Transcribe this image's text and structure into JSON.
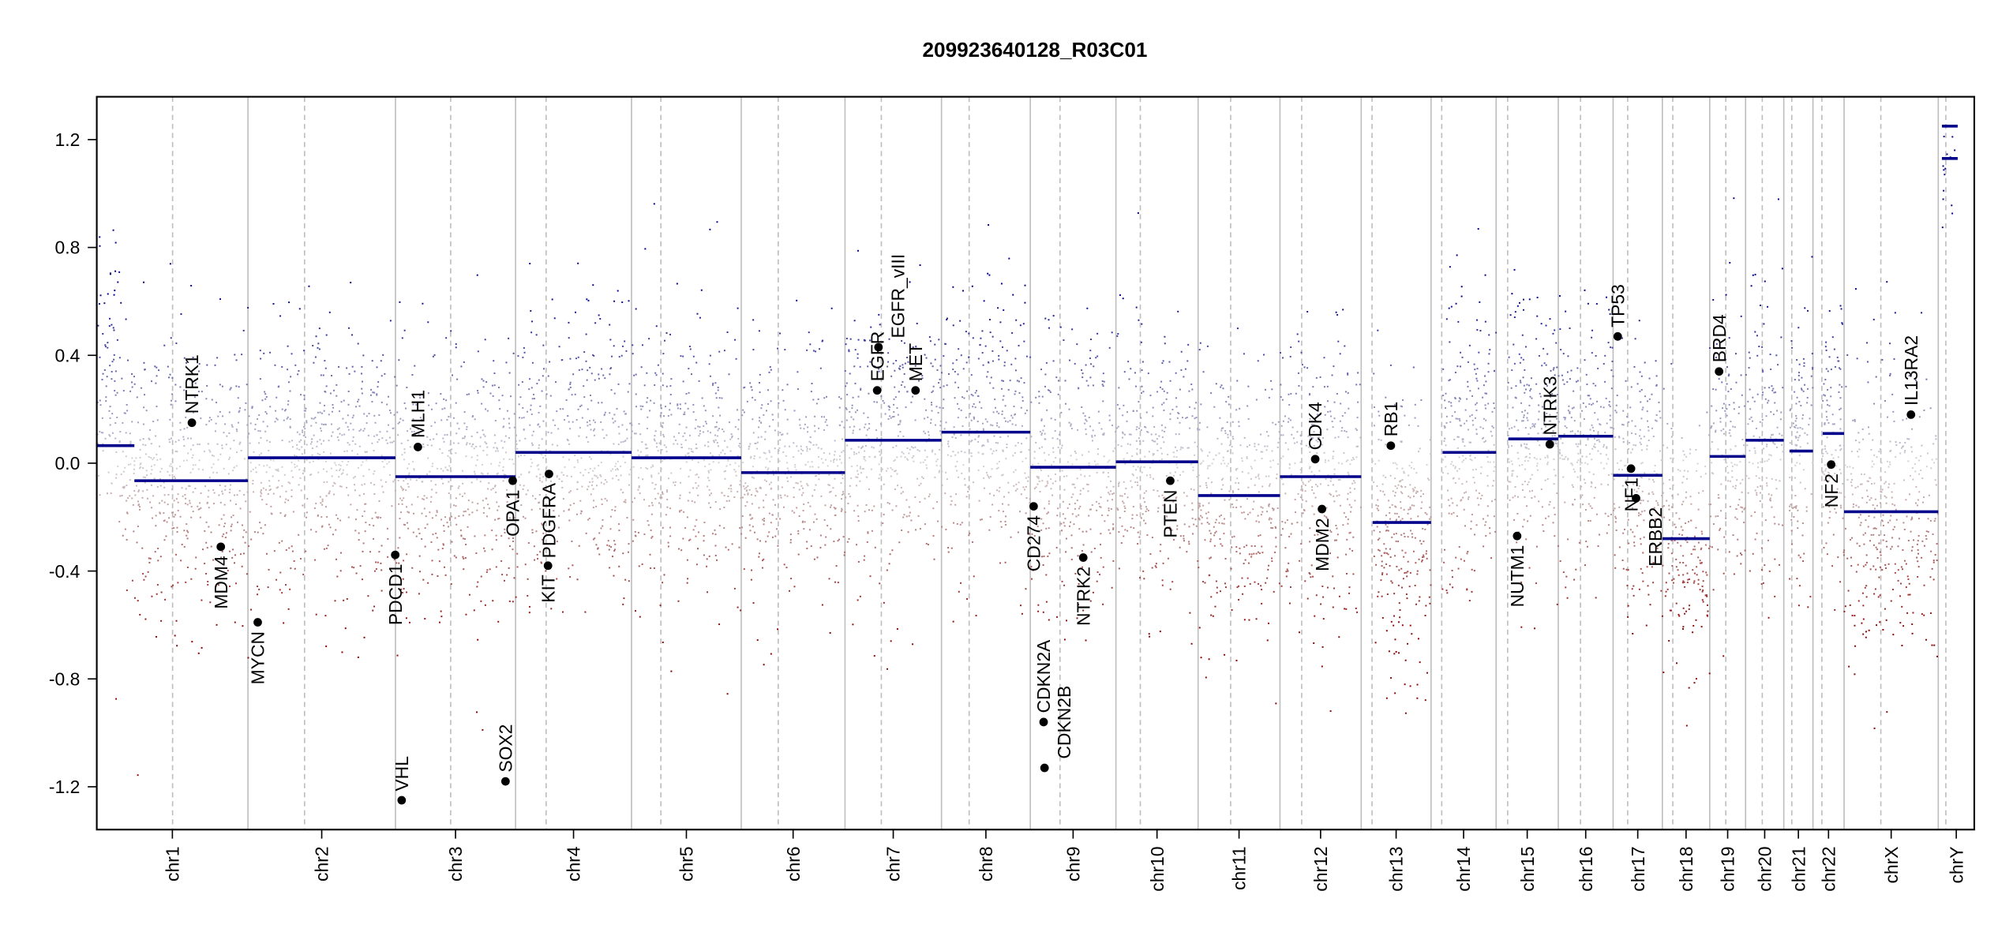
{
  "chart_data": {
    "type": "scatter",
    "title": "209923640128_R03C01",
    "xlabel": "",
    "ylabel": "",
    "ylim": [
      -1.25,
      1.25
    ],
    "yticks": [
      -1.2,
      -0.8,
      -0.4,
      0.0,
      0.4,
      0.8,
      1.2
    ],
    "ytick_labels": [
      "-1.2",
      "-0.8",
      "-0.4",
      "0.0",
      "0.4",
      "0.8",
      "1.2"
    ],
    "grid": false,
    "colors": {
      "low": "#8b0000",
      "mid": "#d3d3d3",
      "high": "#00008b",
      "segment": "#00008b",
      "chrom_line": "#bebebe",
      "gene_point": "#000000"
    },
    "point_noise_sd": 0.22,
    "points_per_mb": 2.3,
    "chromosomes": [
      {
        "name": "chr1",
        "length": 249.3,
        "centromere": 125.0
      },
      {
        "name": "chr2",
        "length": 243.2,
        "centromere": 93.3
      },
      {
        "name": "chr3",
        "length": 198.0,
        "centromere": 91.0
      },
      {
        "name": "chr4",
        "length": 191.2,
        "centromere": 50.4
      },
      {
        "name": "chr5",
        "length": 180.9,
        "centromere": 48.4
      },
      {
        "name": "chr6",
        "length": 171.1,
        "centromere": 61.0
      },
      {
        "name": "chr7",
        "length": 159.1,
        "centromere": 59.9
      },
      {
        "name": "chr8",
        "length": 146.4,
        "centromere": 45.6
      },
      {
        "name": "chr9",
        "length": 141.2,
        "centromere": 49.0
      },
      {
        "name": "chr10",
        "length": 135.5,
        "centromere": 40.2
      },
      {
        "name": "chr11",
        "length": 135.0,
        "centromere": 53.7
      },
      {
        "name": "chr12",
        "length": 133.9,
        "centromere": 35.8
      },
      {
        "name": "chr13",
        "length": 115.2,
        "centromere": 17.9
      },
      {
        "name": "chr14",
        "length": 107.3,
        "centromere": 17.6
      },
      {
        "name": "chr15",
        "length": 102.5,
        "centromere": 19.0
      },
      {
        "name": "chr16",
        "length": 90.4,
        "centromere": 36.6
      },
      {
        "name": "chr17",
        "length": 81.2,
        "centromere": 24.0
      },
      {
        "name": "chr18",
        "length": 78.1,
        "centromere": 17.2
      },
      {
        "name": "chr19",
        "length": 59.1,
        "centromere": 26.5
      },
      {
        "name": "chr20",
        "length": 63.0,
        "centromere": 27.5
      },
      {
        "name": "chr21",
        "length": 48.1,
        "centromere": 13.2
      },
      {
        "name": "chr22",
        "length": 51.3,
        "centromere": 14.7
      },
      {
        "name": "chrX",
        "length": 155.3,
        "centromere": 60.6
      },
      {
        "name": "chrY",
        "length": 59.4,
        "centromere": 12.5
      }
    ],
    "segments": [
      {
        "chr": "chr1",
        "start": 0,
        "end": 62,
        "value": 0.065
      },
      {
        "chr": "chr1",
        "start": 62,
        "end": 249.3,
        "value": -0.065
      },
      {
        "chr": "chr2",
        "start": 0,
        "end": 243.2,
        "value": 0.02
      },
      {
        "chr": "chr3",
        "start": 0,
        "end": 198.0,
        "value": -0.05
      },
      {
        "chr": "chr4",
        "start": 0,
        "end": 191.2,
        "value": 0.04
      },
      {
        "chr": "chr5",
        "start": 0,
        "end": 180.9,
        "value": 0.02
      },
      {
        "chr": "chr6",
        "start": 0,
        "end": 171.1,
        "value": -0.035
      },
      {
        "chr": "chr7",
        "start": 0,
        "end": 159.1,
        "value": 0.085
      },
      {
        "chr": "chr8",
        "start": 0,
        "end": 146.4,
        "value": 0.115
      },
      {
        "chr": "chr9",
        "start": 0,
        "end": 141.2,
        "value": -0.015
      },
      {
        "chr": "chr10",
        "start": 0,
        "end": 135.5,
        "value": 0.005
      },
      {
        "chr": "chr11",
        "start": 0,
        "end": 135.0,
        "value": -0.12
      },
      {
        "chr": "chr12",
        "start": 0,
        "end": 133.9,
        "value": -0.05
      },
      {
        "chr": "chr13",
        "start": 19.0,
        "end": 115.2,
        "value": -0.22
      },
      {
        "chr": "chr14",
        "start": 19.0,
        "end": 107.3,
        "value": 0.04
      },
      {
        "chr": "chr15",
        "start": 20.0,
        "end": 102.5,
        "value": 0.09
      },
      {
        "chr": "chr16",
        "start": 0,
        "end": 90.4,
        "value": 0.1
      },
      {
        "chr": "chr17",
        "start": 0,
        "end": 81.2,
        "value": -0.045
      },
      {
        "chr": "chr18",
        "start": 0,
        "end": 78.1,
        "value": -0.28
      },
      {
        "chr": "chr19",
        "start": 0,
        "end": 59.1,
        "value": 0.025
      },
      {
        "chr": "chr20",
        "start": 0,
        "end": 63.0,
        "value": 0.085
      },
      {
        "chr": "chr21",
        "start": 9.4,
        "end": 48.1,
        "value": 0.045
      },
      {
        "chr": "chr22",
        "start": 16.0,
        "end": 51.3,
        "value": 0.11
      },
      {
        "chr": "chrX",
        "start": 0,
        "end": 155.3,
        "value": -0.18
      },
      {
        "chr": "chrY",
        "start": 6,
        "end": 32,
        "value": 1.13
      },
      {
        "chr": "chrY",
        "start": 6,
        "end": 32,
        "value": 1.25
      }
    ],
    "genes": [
      {
        "name": "NTRK1",
        "chr": "chr1",
        "pos": 156.8,
        "value": 0.15
      },
      {
        "name": "MDM4",
        "chr": "chr1",
        "pos": 204.5,
        "value": -0.31
      },
      {
        "name": "MYCN",
        "chr": "chr2",
        "pos": 16.1,
        "value": -0.59
      },
      {
        "name": "PDCD1",
        "chr": "chr2",
        "pos": 242.8,
        "value": -0.34
      },
      {
        "name": "VHL",
        "chr": "chr3",
        "pos": 10.2,
        "value": -1.25
      },
      {
        "name": "MLH1",
        "chr": "chr3",
        "pos": 37.0,
        "value": 0.06
      },
      {
        "name": "SOX2",
        "chr": "chr3",
        "pos": 181.4,
        "value": -1.18
      },
      {
        "name": "OPA1",
        "chr": "chr3",
        "pos": 193.3,
        "value": -0.065
      },
      {
        "name": "KIT",
        "chr": "chr4",
        "pos": 53.5,
        "value": -0.38
      },
      {
        "name": "PDGFRA",
        "chr": "chr4",
        "pos": 55.1,
        "value": -0.04
      },
      {
        "name": "EGFR",
        "chr": "chr7",
        "pos": 53.0,
        "value": 0.27
      },
      {
        "name": "EGFR_vIII",
        "chr": "chr7",
        "pos": 55.2,
        "value": 0.43
      },
      {
        "name": "MET",
        "chr": "chr7",
        "pos": 116.3,
        "value": 0.27
      },
      {
        "name": "CD274",
        "chr": "chr9",
        "pos": 5.5,
        "value": -0.16
      },
      {
        "name": "CDKN2A",
        "chr": "chr9",
        "pos": 21.97,
        "value": -0.96
      },
      {
        "name": "CDKN2B",
        "chr": "chr9",
        "pos": 23.5,
        "value": -1.13
      },
      {
        "name": "NTRK2",
        "chr": "chr9",
        "pos": 87.3,
        "value": -0.35
      },
      {
        "name": "PTEN",
        "chr": "chr10",
        "pos": 89.6,
        "value": -0.065
      },
      {
        "name": "CDK4",
        "chr": "chr12",
        "pos": 58.1,
        "value": 0.015
      },
      {
        "name": "MDM2",
        "chr": "chr12",
        "pos": 69.2,
        "value": -0.17
      },
      {
        "name": "RB1",
        "chr": "chr13",
        "pos": 48.9,
        "value": 0.065
      },
      {
        "name": "NUTM1",
        "chr": "chr15",
        "pos": 34.6,
        "value": -0.27
      },
      {
        "name": "NTRK3",
        "chr": "chr15",
        "pos": 88.5,
        "value": 0.07
      },
      {
        "name": "TP53",
        "chr": "chr17",
        "pos": 7.6,
        "value": 0.47
      },
      {
        "name": "NF1",
        "chr": "chr17",
        "pos": 29.5,
        "value": -0.02
      },
      {
        "name": "ERBB2",
        "chr": "chr17",
        "pos": 37.8,
        "value": -0.13
      },
      {
        "name": "BRD4",
        "chr": "chr19",
        "pos": 15.4,
        "value": 0.34
      },
      {
        "name": "NF2",
        "chr": "chr22",
        "pos": 30.0,
        "value": -0.005
      },
      {
        "name": "IL13RA2",
        "chr": "chrX",
        "pos": 110.3,
        "value": 0.18
      }
    ]
  }
}
